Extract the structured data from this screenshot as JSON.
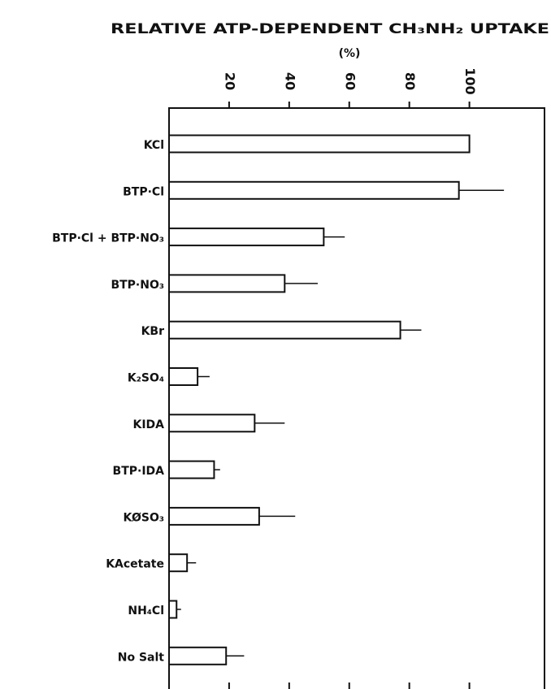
{
  "chart_data": {
    "type": "hbar",
    "title": "RELATIVE ATP-DEPENDENT CH₃NH₂ UPTAKE",
    "subtitle": "(%)",
    "categories": [
      "KCl",
      "BTP·Cl",
      "BTP·Cl + BTP·NO₃",
      "BTP·NO₃",
      "KBr",
      "K₂SO₄",
      "KIDA",
      "BTP·IDA",
      "KØSO₃",
      "KAcetate",
      "NH₄Cl",
      "No Salt"
    ],
    "values": [
      100,
      96.5,
      51.5,
      38.5,
      77,
      9.5,
      28.5,
      15,
      30,
      6,
      2.5,
      19
    ],
    "errors": [
      null,
      15,
      7,
      11,
      7,
      4,
      10,
      2,
      12,
      3,
      1.5,
      6
    ],
    "color": "#ffffff",
    "xlim": [
      0,
      125
    ],
    "xticks": [
      20,
      40,
      60,
      80,
      100
    ],
    "grid": false
  }
}
